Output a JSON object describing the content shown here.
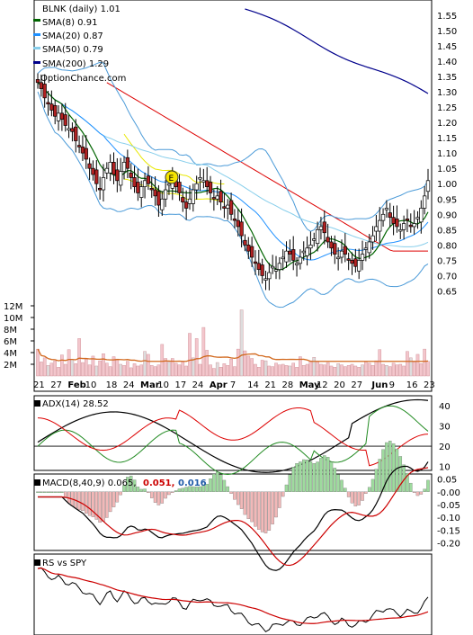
{
  "chart_data": {
    "type": "candlestick",
    "title": "BLNK (daily) 1.01",
    "watermark": "OptionChance.com",
    "legend": [
      {
        "label": "SMA(8) 0.91",
        "color": "#006400"
      },
      {
        "label": "SMA(20) 0.87",
        "color": "#1e90ff"
      },
      {
        "label": "SMA(50) 0.79",
        "color": "#87ceeb"
      },
      {
        "label": "SMA(200) 1.29",
        "color": "#00008b"
      }
    ],
    "earnings_marker": "E",
    "price_axis": {
      "min": 0.6,
      "max": 1.58,
      "ticks": [
        "1.55",
        "1.50",
        "1.45",
        "1.40",
        "1.35",
        "1.30",
        "1.25",
        "1.20",
        "1.15",
        "1.10",
        "1.05",
        "1.00",
        "0.95",
        "0.90",
        "0.85",
        "0.80",
        "0.75",
        "0.70",
        "0.65"
      ]
    },
    "volume_axis": {
      "ticks": [
        "12M",
        "10M",
        "8M",
        "6M",
        "4M",
        "2M"
      ]
    },
    "x_ticks": [
      {
        "label": "21",
        "bold": false
      },
      {
        "label": "27",
        "bold": false
      },
      {
        "label": "Feb",
        "bold": true
      },
      {
        "label": "10",
        "bold": false
      },
      {
        "label": "18",
        "bold": false
      },
      {
        "label": "24",
        "bold": false
      },
      {
        "label": "Mar",
        "bold": true
      },
      {
        "label": "10",
        "bold": false
      },
      {
        "label": "17",
        "bold": false
      },
      {
        "label": "24",
        "bold": false
      },
      {
        "label": "Apr",
        "bold": true
      },
      {
        "label": "7",
        "bold": false
      },
      {
        "label": "14",
        "bold": false
      },
      {
        "label": "21",
        "bold": false
      },
      {
        "label": "28",
        "bold": false
      },
      {
        "label": "May",
        "bold": true
      },
      {
        "label": "12",
        "bold": false
      },
      {
        "label": "20",
        "bold": false
      },
      {
        "label": "27",
        "bold": false
      },
      {
        "label": "Jun",
        "bold": true
      },
      {
        "label": "9",
        "bold": false
      },
      {
        "label": "16",
        "bold": false
      },
      {
        "label": "23",
        "bold": false
      }
    ],
    "close": [
      1.33,
      1.31,
      1.28,
      1.26,
      1.24,
      1.22,
      1.23,
      1.21,
      1.19,
      1.18,
      1.17,
      1.14,
      1.12,
      1.1,
      1.08,
      1.05,
      1.03,
      1.0,
      0.98,
      1.02,
      1.05,
      1.07,
      1.03,
      1.01,
      1.04,
      1.07,
      1.05,
      1.02,
      0.99,
      0.97,
      0.99,
      1.01,
      1.0,
      0.98,
      0.96,
      0.93,
      0.95,
      0.98,
      1.0,
      1.01,
      0.99,
      0.97,
      0.94,
      0.92,
      0.95,
      0.98,
      1.0,
      1.02,
      1.01,
      0.99,
      0.97,
      0.95,
      0.96,
      0.94,
      0.92,
      0.93,
      0.9,
      0.88,
      0.86,
      0.83,
      0.8,
      0.78,
      0.76,
      0.74,
      0.72,
      0.7,
      0.69,
      0.71,
      0.73,
      0.72,
      0.74,
      0.76,
      0.78,
      0.77,
      0.75,
      0.74,
      0.76,
      0.78,
      0.79,
      0.8,
      0.82,
      0.85,
      0.86,
      0.84,
      0.81,
      0.79,
      0.77,
      0.76,
      0.78,
      0.77,
      0.75,
      0.74,
      0.73,
      0.75,
      0.77,
      0.79,
      0.81,
      0.83,
      0.86,
      0.88,
      0.9,
      0.92,
      0.89,
      0.87,
      0.86,
      0.85,
      0.87,
      0.88,
      0.86,
      0.87,
      0.89,
      0.92,
      0.96,
      1.01
    ],
    "volume_millions": [
      4.6,
      2.4,
      3.1,
      1.8,
      2.2,
      2.6,
      1.5,
      3.6,
      2.0,
      4.5,
      2.8,
      2.1,
      6.4,
      2.3,
      2.9,
      1.9,
      3.4,
      1.7,
      2.6,
      3.8,
      2.2,
      1.6,
      3.3,
      2.9,
      2.0,
      1.8,
      2.5,
      1.4,
      2.1,
      1.7,
      1.9,
      4.2,
      3.7,
      1.8,
      1.6,
      1.9,
      5.4,
      3.0,
      2.4,
      3.0,
      2.2,
      1.9,
      2.4,
      1.7,
      7.3,
      3.1,
      6.4,
      2.0,
      8.3,
      4.4,
      1.9,
      1.3,
      2.3,
      1.5,
      2.1,
      1.8,
      2.9,
      1.6,
      4.6,
      11.3,
      4.3,
      3.4,
      3.0,
      2.0,
      1.5,
      2.7,
      2.6,
      1.7,
      1.6,
      2.2,
      1.9,
      2.0,
      1.8,
      1.7,
      2.2,
      1.5,
      3.3,
      1.8,
      2.0,
      2.6,
      3.2,
      2.4,
      2.0,
      1.9,
      2.3,
      1.7,
      1.5,
      2.1,
      1.9,
      1.6,
      1.8,
      2.0,
      1.7,
      1.5,
      1.9,
      2.4,
      2.2,
      1.8,
      2.6,
      4.5,
      2.0,
      1.8,
      1.6,
      2.2,
      1.9,
      2.0,
      1.7,
      4.2,
      3.1,
      2.4,
      3.7,
      2.1,
      4.6,
      2.5
    ],
    "adx": {
      "label": "ADX(14) 28.52",
      "ticks": [
        "40",
        "30",
        "20",
        "10"
      ],
      "min": 8,
      "max": 45
    },
    "macd": {
      "label": "MACD(8,40,9) 0.065,",
      "values": [
        {
          "text": "0.051,",
          "color": "#cc0000"
        },
        {
          "text": "0.016",
          "color": "#1e5aa8"
        }
      ],
      "ticks": [
        "0.05",
        "-0.00",
        "-0.05",
        "-0.10",
        "-0.15",
        "-0.20"
      ],
      "min": -0.23,
      "max": 0.07
    },
    "rs": {
      "label": "RS vs SPY"
    },
    "colors": {
      "up": "#ffffff",
      "down": "#b22222",
      "sma8": "#006400",
      "sma20": "#1e90ff",
      "sma50": "#87ceeb",
      "sma200": "#00008b",
      "bb_outer": "#4a9ad8",
      "bb_yellow": "#e8e800",
      "red_line": "#dd0000",
      "volume_ma": "#d2691e",
      "volume": "#f3c6cc",
      "adx": "#000000",
      "plus_di": "#228b22",
      "minus_di": "#dd0000",
      "macd_hist_up": "#9edb9e",
      "macd_hist_down": "#f2b8b8"
    }
  }
}
